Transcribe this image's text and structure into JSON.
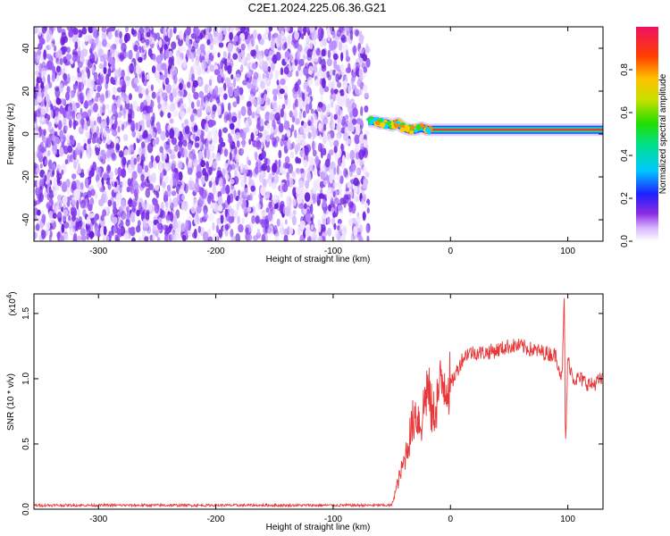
{
  "title": "C2E1.2024.225.06.36.G21",
  "chart_data": [
    {
      "type": "heatmap",
      "xlabel": "Height of straight line (km)",
      "ylabel": "Frequency (Hz)",
      "xlim": [
        -355,
        130
      ],
      "ylim": [
        -50,
        50
      ],
      "x_ticks": [
        -300,
        -200,
        -100,
        0,
        100
      ],
      "x_tick_labels": [
        "-300",
        "-200",
        "-100",
        "0",
        "100"
      ],
      "y_ticks": [
        -40,
        -20,
        0,
        20,
        40
      ],
      "y_tick_labels": [
        "-40",
        "-20",
        "0",
        "20",
        "40"
      ],
      "noise_region_x": [
        -355,
        -70
      ],
      "signal_track": {
        "x": [
          -70,
          -65,
          -60,
          -55,
          -50,
          -45,
          -40,
          -35,
          -30,
          -25,
          -20,
          -10,
          0,
          10,
          20,
          40,
          60,
          80,
          90,
          100,
          110,
          130
        ],
        "freq_hz": [
          6,
          6,
          5,
          5,
          4,
          5,
          3,
          2,
          2,
          3,
          2,
          2,
          2,
          2,
          2,
          2,
          2,
          2,
          2,
          2,
          2,
          2
        ]
      },
      "colorbar": {
        "label": "Normalized spectral amplitude",
        "range": [
          0,
          1
        ],
        "ticks": [
          0.0,
          0.2,
          0.4,
          0.6,
          0.8
        ],
        "tick_labels": [
          "0.0",
          "0.2",
          "0.4",
          "0.6",
          "0.8"
        ]
      },
      "grid": false
    },
    {
      "type": "line",
      "xlabel": "Height of straight line (km)",
      "ylabel": "SNR (10 * v/v)",
      "scale_label": "(x10",
      "scale_exp": "4",
      "scale_close": ")",
      "xlim": [
        -355,
        130
      ],
      "ylim": [
        0,
        1.65
      ],
      "x_ticks": [
        -300,
        -200,
        -100,
        0,
        100
      ],
      "x_tick_labels": [
        "-300",
        "-200",
        "-100",
        "0",
        "100"
      ],
      "y_ticks": [
        0.0,
        0.5,
        1.0,
        1.5
      ],
      "y_tick_labels": [
        "0.0",
        "0.5",
        "1.0",
        "1.5"
      ],
      "series": [
        {
          "color": "#e8393a",
          "x": [
            -355,
            -300,
            -200,
            -100,
            -50,
            -45,
            -40,
            -35,
            -30,
            -25,
            -20,
            -15,
            -10,
            -5,
            0,
            5,
            10,
            15,
            20,
            30,
            40,
            50,
            60,
            70,
            80,
            90,
            95,
            97,
            98,
            100,
            105,
            110,
            120,
            130
          ],
          "y": [
            0.03,
            0.03,
            0.03,
            0.03,
            0.03,
            0.2,
            0.35,
            0.55,
            0.75,
            0.65,
            0.95,
            0.7,
            0.9,
            1.0,
            0.95,
            1.05,
            1.15,
            1.2,
            1.2,
            1.2,
            1.22,
            1.25,
            1.25,
            1.22,
            1.2,
            1.18,
            1.0,
            1.6,
            0.45,
            1.15,
            1.0,
            1.0,
            0.95,
            1.0
          ]
        }
      ],
      "grid": false
    }
  ]
}
